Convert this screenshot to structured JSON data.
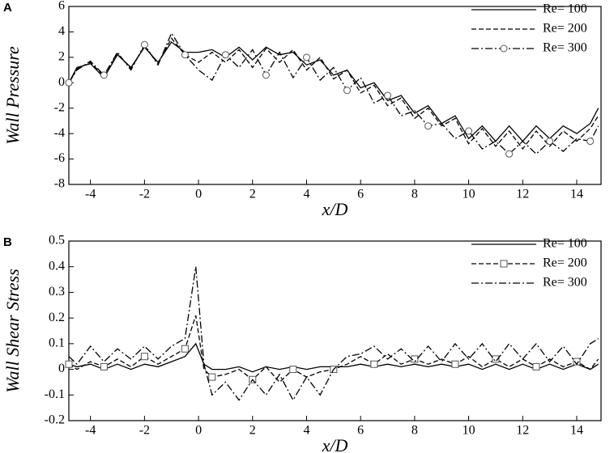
{
  "chart_data": [
    {
      "type": "line",
      "label": "A",
      "ylabel": "Wall Pressure",
      "xlabel": "x/D",
      "x": [
        -4.8,
        -4.5,
        -4,
        -3.5,
        -3,
        -2.5,
        -2,
        -1.5,
        -1,
        -0.5,
        0,
        0.5,
        1,
        1.5,
        2,
        2.5,
        3,
        3.5,
        4,
        4.5,
        5,
        5.5,
        6,
        6.5,
        7,
        7.5,
        8,
        8.5,
        9,
        9.5,
        10,
        10.5,
        11,
        11.5,
        12,
        12.5,
        13,
        13.5,
        14,
        14.5,
        14.8
      ],
      "series": [
        {
          "name": "Re= 100",
          "color": "#000000",
          "dash": "solid",
          "values": [
            0,
            1.2,
            1.5,
            0.4,
            2.2,
            1.2,
            2.8,
            1.6,
            3.2,
            2.4,
            2.4,
            2.6,
            2.0,
            2.8,
            1.8,
            2.8,
            2.2,
            2.4,
            1.4,
            1.8,
            0.6,
            1.0,
            -0.4,
            0,
            -1.4,
            -1.0,
            -2.4,
            -1.8,
            -3.2,
            -2.6,
            -4.4,
            -3.4,
            -4.6,
            -3.4,
            -4.6,
            -3.4,
            -4.4,
            -3.4,
            -4.0,
            -3.2,
            -2.0
          ]
        },
        {
          "name": "Re= 200",
          "color": "#000000",
          "dash": "dashed",
          "values": [
            0,
            1.1,
            1.6,
            0.5,
            2.3,
            1.1,
            2.9,
            1.5,
            3.5,
            2.2,
            1.6,
            2.4,
            1.6,
            2.6,
            1.2,
            2.7,
            1.6,
            2.6,
            1.0,
            2.0,
            0.3,
            1.0,
            -0.8,
            -0.2,
            -1.8,
            -1.2,
            -2.8,
            -2.0,
            -3.4,
            -2.8,
            -4.8,
            -3.6,
            -5.0,
            -3.8,
            -5.2,
            -3.8,
            -5.0,
            -3.8,
            -4.6,
            -3.6,
            -2.6
          ]
        },
        {
          "name": "Re= 300",
          "color": "#000000",
          "dash": "dashdot",
          "marker": "circle",
          "values": [
            0,
            1.0,
            1.7,
            0.6,
            2.4,
            1.0,
            3.0,
            1.4,
            3.9,
            2.2,
            1.0,
            0.2,
            2.2,
            1.2,
            2.6,
            0.6,
            2.4,
            0.4,
            2.0,
            0.2,
            1.2,
            -0.6,
            0.4,
            -1.6,
            -1.0,
            -2.6,
            -2.2,
            -3.4,
            -3.2,
            -4.4,
            -3.8,
            -5.2,
            -4.6,
            -5.6,
            -4.6,
            -5.6,
            -4.6,
            -5.4,
            -4.4,
            -4.6,
            -3.4
          ]
        }
      ],
      "xlim": [
        -4.8,
        14.9
      ],
      "xticks": [
        -4,
        -2,
        0,
        2,
        4,
        6,
        8,
        10,
        12,
        14
      ],
      "ylim": [
        -8,
        6
      ],
      "yticks": [
        -8,
        -6,
        -4,
        -2,
        0,
        2,
        4,
        6
      ],
      "legend": "upper right"
    },
    {
      "type": "line",
      "label": "B",
      "ylabel": "Wall Shear Stress",
      "xlabel": "x/D",
      "x": [
        -4.8,
        -4.5,
        -4,
        -3.5,
        -3,
        -2.5,
        -2,
        -1.5,
        -1,
        -0.5,
        -0.1,
        0.2,
        0.5,
        1,
        1.5,
        2,
        2.5,
        3,
        3.5,
        4,
        4.5,
        5,
        5.5,
        6,
        6.5,
        7,
        7.5,
        8,
        8.5,
        9,
        9.5,
        10,
        10.5,
        11,
        11.5,
        12,
        12.5,
        13,
        13.5,
        14,
        14.5,
        14.8
      ],
      "series": [
        {
          "name": "Re= 100",
          "color": "#000000",
          "dash": "solid",
          "values": [
            0.02,
            0.01,
            0.02,
            0.0,
            0.02,
            0.0,
            0.02,
            0.01,
            0.03,
            0.05,
            0.1,
            0.02,
            0.0,
            0.0,
            0.01,
            -0.01,
            0.01,
            0.0,
            0.01,
            0.0,
            0.01,
            0.01,
            0.01,
            0.02,
            0.01,
            0.02,
            0.01,
            0.02,
            0.01,
            0.02,
            0.01,
            0.02,
            0.0,
            0.02,
            0.0,
            0.02,
            0.0,
            0.02,
            0.0,
            0.02,
            0.0,
            0.02
          ]
        },
        {
          "name": "Re= 200",
          "color": "#000000",
          "dash": "dashed",
          "marker": "square",
          "values": [
            0.02,
            0.0,
            0.03,
            0.01,
            0.04,
            0.01,
            0.05,
            0.02,
            0.05,
            0.08,
            0.21,
            0.0,
            -0.03,
            -0.02,
            0.0,
            -0.04,
            0.01,
            -0.05,
            0.0,
            -0.03,
            -0.01,
            0.0,
            0.02,
            0.05,
            0.02,
            0.06,
            0.02,
            0.04,
            0.02,
            0.04,
            0.02,
            0.05,
            0.01,
            0.04,
            0.01,
            0.04,
            0.01,
            0.04,
            0.01,
            0.03,
            0.0,
            0.04
          ]
        },
        {
          "name": "Re= 300",
          "color": "#000000",
          "dash": "dashdot",
          "values": [
            0.05,
            0.02,
            0.09,
            0.03,
            0.08,
            0.04,
            0.09,
            0.04,
            0.09,
            0.12,
            0.4,
            0.02,
            -0.1,
            -0.05,
            -0.12,
            -0.04,
            -0.1,
            -0.02,
            -0.12,
            -0.03,
            -0.1,
            0.0,
            0.05,
            0.06,
            0.09,
            0.04,
            0.08,
            0.03,
            0.09,
            0.03,
            0.1,
            0.04,
            0.1,
            0.03,
            0.1,
            0.04,
            0.1,
            0.03,
            0.09,
            0.02,
            0.1,
            0.12
          ]
        }
      ],
      "xlim": [
        -4.8,
        14.9
      ],
      "xticks": [
        -4,
        -2,
        0,
        2,
        4,
        6,
        8,
        10,
        12,
        14
      ],
      "ylim": [
        -0.2,
        0.5
      ],
      "yticks": [
        -0.2,
        -0.1,
        0,
        0.1,
        0.2,
        0.3,
        0.4,
        0.5
      ],
      "legend": "upper right"
    }
  ]
}
